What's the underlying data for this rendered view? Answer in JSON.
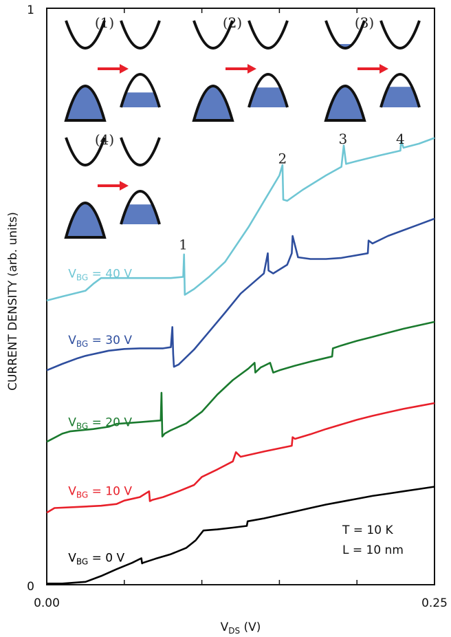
{
  "chart_data": {
    "type": "line",
    "title": "",
    "xlabel": "V_DS (V)",
    "xlabel_main": "V",
    "xlabel_sub": "DS",
    "xlabel_unit": " (V)",
    "ylabel": "CURRENT DENSITY (arb. units)",
    "xlim": [
      0.0,
      0.25
    ],
    "ylim": [
      0,
      1
    ],
    "x_tick_labels": [
      "0.00",
      "0.25"
    ],
    "y_tick_labels": [
      "0",
      "1"
    ],
    "grid": false,
    "annotations": {
      "temperature": "T = 10 K",
      "length": "L = 10 nm"
    },
    "peak_labels": [
      {
        "text": "1",
        "x": 0.088,
        "y": 0.582
      },
      {
        "text": "2",
        "x": 0.152,
        "y": 0.731
      },
      {
        "text": "3",
        "x": 0.191,
        "y": 0.765
      },
      {
        "text": "4",
        "x": 0.228,
        "y": 0.765
      }
    ],
    "insets": [
      {
        "label": "(1)",
        "left_cb_fill": 0.28,
        "left_vb_fill": 0.88,
        "right_vb_fill": 0.45
      },
      {
        "label": "(2)",
        "left_cb_fill": 0.45,
        "left_vb_fill": 0.88,
        "right_vb_fill": 0.6
      },
      {
        "label": "(3)",
        "left_cb_fill": 0.65,
        "left_vb_fill": 0.88,
        "right_vb_fill": 0.62
      },
      {
        "label": "(4)",
        "left_cb_fill": 0.45,
        "left_vb_fill": 0.88,
        "right_vb_fill": 0.6
      }
    ],
    "series": [
      {
        "label_main": "V",
        "label_sub": "BG",
        "label_rest": " = 0 V",
        "color": "#000000",
        "x": [
          0.0,
          0.01,
          0.025,
          0.035,
          0.045,
          0.055,
          0.061,
          0.0615,
          0.062,
          0.07,
          0.08,
          0.09,
          0.096,
          0.101,
          0.11,
          0.12,
          0.129,
          0.1295,
          0.14,
          0.15,
          0.16,
          0.17,
          0.18,
          0.19,
          0.2,
          0.21,
          0.22,
          0.23,
          0.24,
          0.25
        ],
        "y": [
          0.002,
          0.002,
          0.005,
          0.015,
          0.027,
          0.038,
          0.046,
          0.037,
          0.038,
          0.045,
          0.053,
          0.064,
          0.077,
          0.094,
          0.096,
          0.099,
          0.102,
          0.11,
          0.115,
          0.121,
          0.127,
          0.133,
          0.139,
          0.144,
          0.149,
          0.154,
          0.158,
          0.162,
          0.166,
          0.17
        ]
      },
      {
        "label_main": "V",
        "label_sub": "BG",
        "label_rest": " = 10 V",
        "color": "#e8202a",
        "x": [
          0.0,
          0.005,
          0.02,
          0.035,
          0.045,
          0.05,
          0.06,
          0.066,
          0.0665,
          0.068,
          0.075,
          0.085,
          0.095,
          0.1,
          0.11,
          0.12,
          0.122,
          0.125,
          0.14,
          0.158,
          0.1585,
          0.16,
          0.17,
          0.18,
          0.19,
          0.2,
          0.21,
          0.22,
          0.23,
          0.24,
          0.25
        ],
        "y": [
          0.125,
          0.133,
          0.135,
          0.137,
          0.14,
          0.146,
          0.152,
          0.162,
          0.145,
          0.147,
          0.152,
          0.162,
          0.173,
          0.187,
          0.2,
          0.214,
          0.23,
          0.222,
          0.231,
          0.241,
          0.256,
          0.253,
          0.261,
          0.27,
          0.278,
          0.286,
          0.293,
          0.299,
          0.305,
          0.31,
          0.315
        ]
      },
      {
        "label_main": "V",
        "label_sub": "BG",
        "label_rest": " = 20 V",
        "color": "#1a7a2e",
        "x": [
          0.0,
          0.01,
          0.015,
          0.03,
          0.04,
          0.045,
          0.06,
          0.0735,
          0.074,
          0.0745,
          0.076,
          0.08,
          0.09,
          0.1,
          0.11,
          0.12,
          0.13,
          0.134,
          0.1345,
          0.138,
          0.144,
          0.146,
          0.15,
          0.16,
          0.17,
          0.184,
          0.1845,
          0.19,
          0.2,
          0.21,
          0.22,
          0.23,
          0.24,
          0.25
        ],
        "y": [
          0.248,
          0.262,
          0.266,
          0.27,
          0.274,
          0.279,
          0.282,
          0.285,
          0.333,
          0.257,
          0.262,
          0.268,
          0.28,
          0.3,
          0.33,
          0.355,
          0.375,
          0.385,
          0.368,
          0.377,
          0.385,
          0.368,
          0.372,
          0.38,
          0.387,
          0.396,
          0.41,
          0.415,
          0.423,
          0.43,
          0.437,
          0.444,
          0.45,
          0.456
        ]
      },
      {
        "label_main": "V",
        "label_sub": "BG",
        "label_rest": " = 30 V",
        "color": "#2e4e9e",
        "x": [
          0.0,
          0.01,
          0.02,
          0.025,
          0.035,
          0.04,
          0.05,
          0.06,
          0.075,
          0.08,
          0.081,
          0.0815,
          0.082,
          0.085,
          0.095,
          0.105,
          0.115,
          0.125,
          0.14,
          0.1425,
          0.143,
          0.146,
          0.155,
          0.158,
          0.1585,
          0.162,
          0.17,
          0.18,
          0.19,
          0.207,
          0.2075,
          0.21,
          0.22,
          0.23,
          0.24,
          0.25
        ],
        "y": [
          0.372,
          0.383,
          0.393,
          0.397,
          0.403,
          0.406,
          0.409,
          0.41,
          0.41,
          0.412,
          0.447,
          0.4,
          0.378,
          0.382,
          0.408,
          0.44,
          0.472,
          0.505,
          0.54,
          0.575,
          0.545,
          0.54,
          0.555,
          0.575,
          0.605,
          0.568,
          0.565,
          0.565,
          0.567,
          0.575,
          0.597,
          0.592,
          0.605,
          0.615,
          0.625,
          0.635
        ]
      },
      {
        "label_main": "V",
        "label_sub": "BG",
        "label_rest": " = 40 V",
        "color": "#6fc6d4",
        "x": [
          0.0,
          0.01,
          0.025,
          0.03,
          0.035,
          0.045,
          0.06,
          0.08,
          0.088,
          0.0885,
          0.089,
          0.095,
          0.105,
          0.115,
          0.13,
          0.15,
          0.152,
          0.1525,
          0.155,
          0.165,
          0.18,
          0.19,
          0.1915,
          0.193,
          0.2,
          0.215,
          0.228,
          0.2285,
          0.23,
          0.24,
          0.25
        ],
        "y": [
          0.493,
          0.5,
          0.51,
          0.522,
          0.532,
          0.532,
          0.532,
          0.532,
          0.534,
          0.573,
          0.503,
          0.513,
          0.535,
          0.56,
          0.62,
          0.71,
          0.728,
          0.668,
          0.666,
          0.685,
          0.71,
          0.725,
          0.762,
          0.73,
          0.735,
          0.745,
          0.753,
          0.77,
          0.758,
          0.765,
          0.775
        ]
      }
    ],
    "series_label_pos": [
      {
        "x": 0.005,
        "y": 0.047
      },
      {
        "x": 0.005,
        "y": 0.163
      },
      {
        "x": 0.005,
        "y": 0.282
      },
      {
        "x": 0.005,
        "y": 0.425
      },
      {
        "x": 0.005,
        "y": 0.54
      }
    ]
  }
}
